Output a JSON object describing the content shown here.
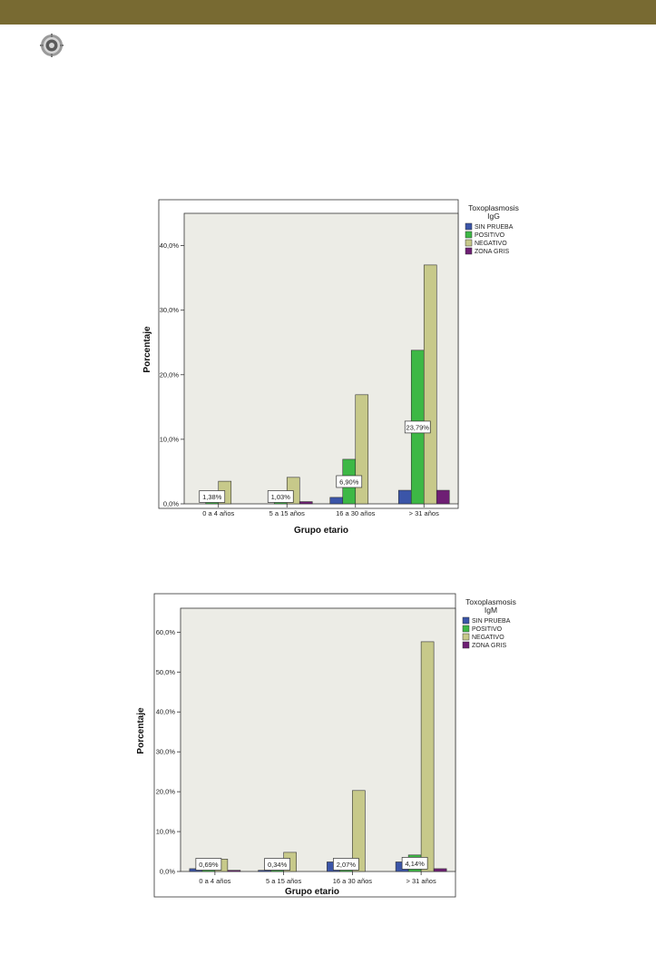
{
  "page": {
    "logo_icon": "gear-logo-icon",
    "band_color": "#786a32"
  },
  "colors": {
    "plot_bg": "#ececE6",
    "sin_prueba": "#3b55a8",
    "positivo": "#3db845",
    "negativo": "#c7c98a",
    "zona_gris": "#6e1f74"
  },
  "chart_data": [
    {
      "type": "bar",
      "legend_title": [
        "Toxoplasmosis",
        "IgG"
      ],
      "xlabel": "Grupo etario",
      "ylabel": "Porcentaje",
      "ylim": [
        0,
        45
      ],
      "yticks": [
        0,
        10,
        20,
        30,
        40
      ],
      "ytick_labels": [
        "0,0%",
        "10,0%",
        "20,0%",
        "30,0%",
        "40,0%"
      ],
      "categories": [
        "0 a 4 años",
        "5 a 15 años",
        "16 a 30 años",
        "> 31 años"
      ],
      "series": [
        {
          "name": "SIN PRUEBA",
          "color_key": "sin_prueba",
          "values": [
            0,
            0,
            1.0,
            2.1
          ]
        },
        {
          "name": "POSITIVO",
          "color_key": "positivo",
          "values": [
            1.38,
            1.03,
            6.9,
            23.79
          ]
        },
        {
          "name": "NEGATIVO",
          "color_key": "negativo",
          "values": [
            3.5,
            4.1,
            16.9,
            37.0
          ]
        },
        {
          "name": "ZONA GRIS",
          "color_key": "zona_gris",
          "values": [
            0,
            0.34,
            0,
            2.1
          ]
        }
      ],
      "data_labels": [
        "1,38%",
        "1,03%",
        "6,90%",
        "23,79%"
      ],
      "label_series": "POSITIVO"
    },
    {
      "type": "bar",
      "legend_title": [
        "Toxoplasmosis",
        "IgM"
      ],
      "xlabel": "Grupo etario",
      "ylabel": "Porcentaje",
      "ylim": [
        0,
        66
      ],
      "yticks": [
        0,
        10,
        20,
        30,
        40,
        50,
        60
      ],
      "ytick_labels": [
        "0,0%",
        "10,0%",
        "20,0%",
        "30,0%",
        "40,0%",
        "50,0%",
        "60,0%"
      ],
      "categories": [
        "0 a 4 años",
        "5 a 15 años",
        "16 a 30 años",
        "> 31 años"
      ],
      "series": [
        {
          "name": "SIN PRUEBA",
          "color_key": "sin_prueba",
          "values": [
            0.7,
            0.3,
            2.4,
            2.4
          ]
        },
        {
          "name": "POSITIVO",
          "color_key": "positivo",
          "values": [
            0.69,
            0.34,
            2.07,
            4.14
          ]
        },
        {
          "name": "NEGATIVO",
          "color_key": "negativo",
          "values": [
            3.1,
            4.8,
            20.3,
            57.6
          ]
        },
        {
          "name": "ZONA GRIS",
          "color_key": "zona_gris",
          "values": [
            0.3,
            0,
            0,
            0.7
          ]
        }
      ],
      "data_labels": [
        "0,69%",
        "0,34%",
        "2,07%",
        "4,14%"
      ],
      "label_series": "POSITIVO"
    }
  ]
}
